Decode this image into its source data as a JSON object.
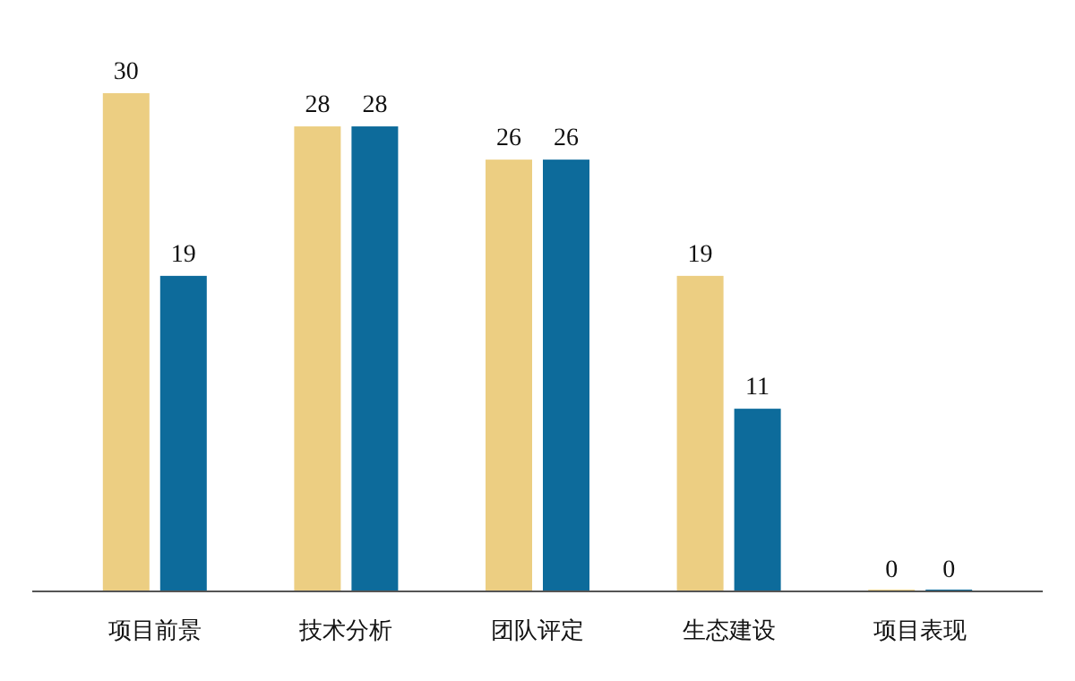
{
  "chart_data": {
    "type": "bar",
    "categories": [
      "项目前景",
      "技术分析",
      "团队评定",
      "生态建设",
      "项目表现"
    ],
    "series": [
      {
        "color": "#ecce82",
        "values": [
          30,
          28,
          26,
          19,
          0
        ]
      },
      {
        "color": "#0d6b9b",
        "values": [
          19,
          28,
          26,
          11,
          0
        ]
      }
    ],
    "data_labels": true
  }
}
